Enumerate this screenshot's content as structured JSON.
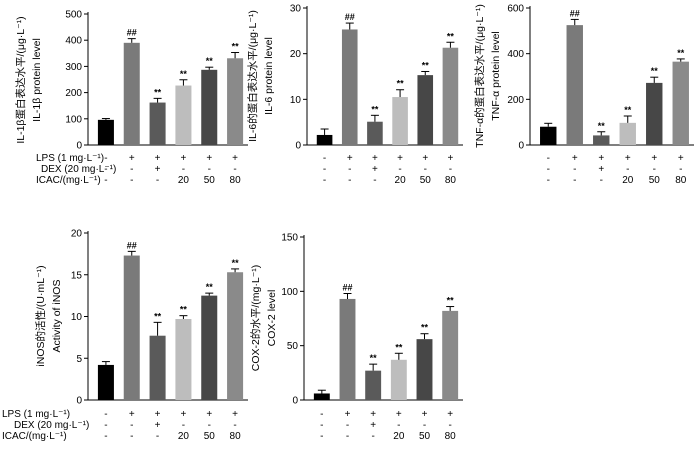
{
  "colors": {
    "bars": [
      "#000000",
      "#7a7a7a",
      "#5a5a5a",
      "#bdbdbd",
      "#474747",
      "#8a8a8a"
    ],
    "axis": "#000000"
  },
  "conditions": {
    "labels": [
      "LPS (1 mg·L⁻¹)",
      "DEX (20 mg·L⁻¹)",
      "ICAC/(mg·L⁻¹)"
    ],
    "rows": [
      [
        "-",
        "+",
        "+",
        "+",
        "+",
        "+"
      ],
      [
        "-",
        "-",
        "+",
        "-",
        "-",
        "-"
      ],
      [
        "-",
        "-",
        "-",
        "20",
        "50",
        "80"
      ]
    ]
  },
  "chart_data": [
    {
      "id": "il1b",
      "type": "bar",
      "ylabel_lines": [
        "IL-1β蛋白表达水平/(μg·L⁻¹)",
        "IL-1β protein level"
      ],
      "ylim": [
        0,
        500
      ],
      "yticks": [
        0,
        100,
        200,
        300,
        400,
        500
      ],
      "values": [
        96,
        390,
        162,
        227,
        287,
        331
      ],
      "errors": [
        5,
        16,
        16,
        22,
        10,
        22
      ],
      "labels": [
        "",
        "##",
        "**",
        "**",
        "**",
        "**"
      ]
    },
    {
      "id": "il6",
      "type": "bar",
      "ylabel_lines": [
        "IL-6的蛋白表达水平/(μg·L⁻¹)",
        "IL-6 protein level"
      ],
      "ylim": [
        0,
        30
      ],
      "yticks": [
        0,
        10,
        20,
        30
      ],
      "values": [
        2.2,
        25.3,
        5.1,
        10.5,
        15.3,
        21.3
      ],
      "errors": [
        1.3,
        1.4,
        1.4,
        1.6,
        0.8,
        1.2
      ],
      "labels": [
        "",
        "##",
        "**",
        "**",
        "**",
        "**"
      ]
    },
    {
      "id": "tnfa",
      "type": "bar",
      "ylabel_lines": [
        "TNF-α的蛋白表达水平/(μg·L⁻¹)",
        "TNF-α protein level"
      ],
      "ylim": [
        0,
        600
      ],
      "yticks": [
        0,
        200,
        400,
        600
      ],
      "values": [
        80,
        525,
        42,
        97,
        272,
        365
      ],
      "errors": [
        15,
        25,
        16,
        30,
        25,
        12
      ],
      "labels": [
        "",
        "##",
        "**",
        "**",
        "**",
        "**"
      ]
    },
    {
      "id": "inos",
      "type": "bar",
      "ylabel_lines": [
        "iNOS的活性/(U·mL⁻¹)",
        "Activity of iNOS"
      ],
      "ylim": [
        0,
        20
      ],
      "yticks": [
        0,
        5,
        10,
        15,
        20
      ],
      "values": [
        4.2,
        17.3,
        7.7,
        9.7,
        12.5,
        15.3
      ],
      "errors": [
        0.4,
        0.5,
        1.6,
        0.4,
        0.3,
        0.4
      ],
      "labels": [
        "",
        "##",
        "**",
        "**",
        "**",
        "**"
      ]
    },
    {
      "id": "cox2",
      "type": "bar",
      "ylabel_lines": [
        "COX-2的水平/(mg·L⁻¹)",
        "COX-2 level"
      ],
      "ylim": [
        0,
        150
      ],
      "yticks": [
        0,
        50,
        100,
        150
      ],
      "values": [
        6,
        93,
        27,
        37,
        56,
        82
      ],
      "errors": [
        3,
        5,
        6,
        6,
        5,
        4
      ],
      "labels": [
        "",
        "##",
        "**",
        "**",
        "**",
        "**"
      ]
    }
  ]
}
